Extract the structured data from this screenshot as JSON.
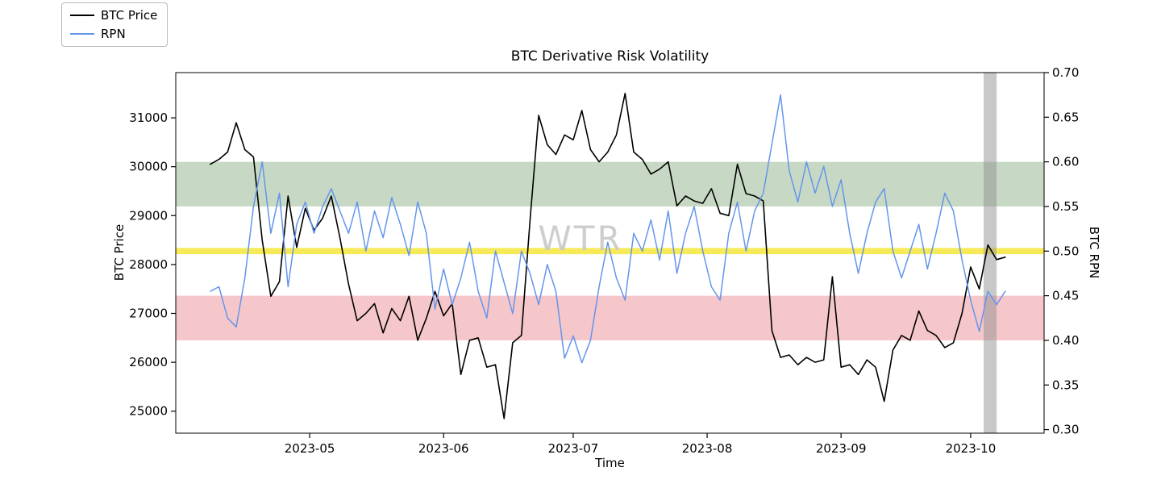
{
  "title": "BTC Derivative Risk Volatility",
  "watermark": "WTR",
  "legend": {
    "items": [
      {
        "label": "BTC Price",
        "color": "#000000"
      },
      {
        "label": "RPN",
        "color": "#6495ed"
      }
    ]
  },
  "chart_data": {
    "type": "line",
    "title": "BTC Derivative Risk Volatility",
    "xlabel": "Time",
    "ylabel_left": "BTC Price",
    "ylabel_right": "BTC RPN",
    "x_range": [
      "2023-03-31",
      "2023-10-18"
    ],
    "ylim_left": [
      24550,
      31925
    ],
    "ylim_right": [
      0.296,
      0.7
    ],
    "x": {
      "start": "2023-04-08",
      "step_days": 2,
      "count": 93
    },
    "x_ticks": [
      {
        "value": "2023-05-01",
        "label": "2023-05"
      },
      {
        "value": "2023-06-01",
        "label": "2023-06"
      },
      {
        "value": "2023-07-01",
        "label": "2023-07"
      },
      {
        "value": "2023-08-01",
        "label": "2023-08"
      },
      {
        "value": "2023-09-01",
        "label": "2023-09"
      },
      {
        "value": "2023-10-01",
        "label": "2023-10"
      }
    ],
    "y_left_ticks": [
      {
        "value": 25000,
        "label": "25000"
      },
      {
        "value": 26000,
        "label": "26000"
      },
      {
        "value": 27000,
        "label": "27000"
      },
      {
        "value": 28000,
        "label": "28000"
      },
      {
        "value": 29000,
        "label": "29000"
      },
      {
        "value": 30000,
        "label": "30000"
      },
      {
        "value": 31000,
        "label": "31000"
      }
    ],
    "y_right_ticks": [
      {
        "value": 0.3,
        "label": "0.30"
      },
      {
        "value": 0.35,
        "label": "0.35"
      },
      {
        "value": 0.4,
        "label": "0.40"
      },
      {
        "value": 0.45,
        "label": "0.45"
      },
      {
        "value": 0.5,
        "label": "0.50"
      },
      {
        "value": 0.55,
        "label": "0.55"
      },
      {
        "value": 0.6,
        "label": "0.60"
      },
      {
        "value": 0.65,
        "label": "0.65"
      },
      {
        "value": 0.7,
        "label": "0.70"
      }
    ],
    "bands": [
      {
        "name": "green-band",
        "axis": "right",
        "from": 0.55,
        "to": 0.6,
        "color": "rgba(70,130,60,0.30)"
      },
      {
        "name": "yellow-band",
        "axis": "right",
        "from": 0.4965,
        "to": 0.5035,
        "color": "rgba(244,230,60,0.85)"
      },
      {
        "name": "red-band",
        "axis": "right",
        "from": 0.4,
        "to": 0.45,
        "color": "rgba(225,70,80,0.30)"
      }
    ],
    "vspan": {
      "from": "2023-10-04",
      "to": "2023-10-07",
      "color": "rgba(145,145,145,0.50)"
    },
    "series": [
      {
        "name": "BTC Price",
        "axis": "left",
        "color": "#000000",
        "width": 1.6,
        "values": [
          30050,
          30150,
          30300,
          30900,
          30350,
          30200,
          28500,
          27350,
          27650,
          29400,
          28350,
          29150,
          28700,
          28950,
          29400,
          28550,
          27600,
          26850,
          27000,
          27200,
          26600,
          27100,
          26850,
          27350,
          26450,
          26900,
          27450,
          26950,
          27200,
          25750,
          26450,
          26500,
          25900,
          25950,
          24850,
          26400,
          26550,
          28900,
          31050,
          30450,
          30250,
          30650,
          30550,
          31150,
          30350,
          30100,
          30300,
          30650,
          31500,
          30300,
          30150,
          29850,
          29950,
          30100,
          29200,
          29400,
          29300,
          29250,
          29550,
          29050,
          29000,
          30050,
          29450,
          29400,
          29300,
          26650,
          26100,
          26150,
          25950,
          26100,
          26000,
          26050,
          27750,
          25900,
          25950,
          25750,
          26050,
          25900,
          25200,
          26250,
          26550,
          26450,
          27050,
          26650,
          26550,
          26300,
          26400,
          27000,
          27950,
          27500,
          28400,
          28100,
          28150
        ]
      },
      {
        "name": "RPN",
        "axis": "right",
        "color": "#6495ed",
        "width": 1.5,
        "values": [
          0.455,
          0.46,
          0.425,
          0.415,
          0.47,
          0.55,
          0.6,
          0.52,
          0.565,
          0.46,
          0.53,
          0.555,
          0.52,
          0.55,
          0.57,
          0.545,
          0.52,
          0.555,
          0.5,
          0.545,
          0.515,
          0.56,
          0.53,
          0.495,
          0.555,
          0.52,
          0.435,
          0.48,
          0.44,
          0.47,
          0.51,
          0.455,
          0.425,
          0.5,
          0.465,
          0.43,
          0.5,
          0.475,
          0.44,
          0.485,
          0.455,
          0.38,
          0.405,
          0.375,
          0.4,
          0.46,
          0.51,
          0.47,
          0.445,
          0.52,
          0.5,
          0.535,
          0.49,
          0.545,
          0.475,
          0.52,
          0.55,
          0.5,
          0.46,
          0.445,
          0.52,
          0.555,
          0.5,
          0.545,
          0.565,
          0.62,
          0.675,
          0.59,
          0.555,
          0.6,
          0.565,
          0.595,
          0.55,
          0.58,
          0.52,
          0.475,
          0.52,
          0.555,
          0.57,
          0.5,
          0.47,
          0.5,
          0.53,
          0.48,
          0.52,
          0.565,
          0.545,
          0.49,
          0.445,
          0.41,
          0.455,
          0.44,
          0.455
        ]
      }
    ]
  }
}
